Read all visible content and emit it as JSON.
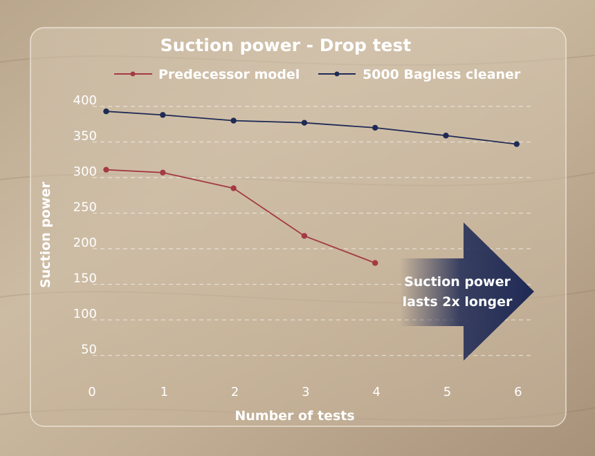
{
  "chart_data": {
    "type": "line",
    "title": "Suction power - Drop test",
    "xlabel": "Number of tests",
    "ylabel": "Suction power",
    "x_ticks": [
      0,
      1,
      2,
      3,
      4,
      5,
      6
    ],
    "y_ticks": [
      50,
      100,
      150,
      200,
      250,
      300,
      350,
      400
    ],
    "y_zero_label": "0",
    "xlim": [
      0,
      6
    ],
    "ylim": [
      0,
      400
    ],
    "grid": true,
    "legend_position": "top",
    "series": [
      {
        "name": "Predecessor model",
        "color": "#a33a44",
        "x": [
          0.2,
          1,
          2,
          3,
          4
        ],
        "y": [
          311,
          307,
          285,
          218,
          180
        ]
      },
      {
        "name": "5000 Bagless cleaner",
        "color": "#1f2a55",
        "x": [
          0.2,
          1,
          2,
          3,
          4,
          5,
          6
        ],
        "y": [
          393,
          388,
          380,
          377,
          370,
          359,
          347
        ]
      }
    ],
    "annotation": {
      "lines": [
        "Suction power",
        "lasts 2x longer"
      ],
      "color": "#1f2a55"
    }
  }
}
